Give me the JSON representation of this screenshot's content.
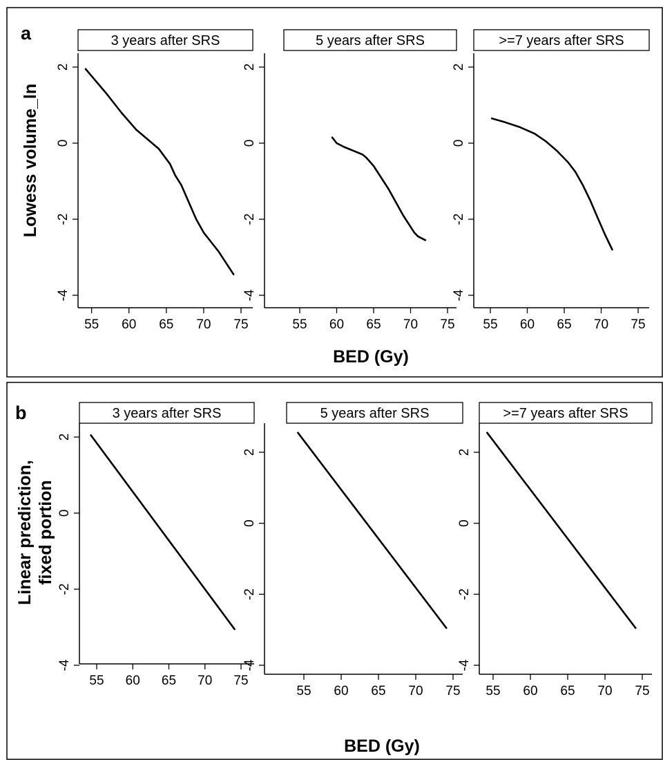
{
  "figure": {
    "panels": [
      {
        "letter": "a",
        "ylabel_lines": [
          "Lowess volume_ln"
        ],
        "xlabel": "BED (Gy)"
      },
      {
        "letter": "b",
        "ylabel_lines": [
          "Linear prediction,",
          "fixed portion"
        ],
        "xlabel": "BED (Gy)"
      }
    ]
  },
  "chart_data": [
    {
      "type": "line",
      "panel": "a",
      "title": "3 years after SRS",
      "xlim": [
        53,
        76
      ],
      "ylim": [
        -4.2,
        2.3
      ],
      "xticks": [
        55,
        60,
        65,
        70,
        75
      ],
      "yticks": [
        2,
        0,
        -2,
        -4
      ],
      "x": [
        54.2,
        57,
        59,
        61,
        62.5,
        64,
        65.5,
        66.2,
        67,
        68,
        69,
        70,
        71,
        72,
        73,
        74
      ],
      "y": [
        1.95,
        1.3,
        0.8,
        0.35,
        0.1,
        -0.15,
        -0.55,
        -0.85,
        -1.1,
        -1.55,
        -2.0,
        -2.35,
        -2.6,
        -2.85,
        -3.15,
        -3.45
      ]
    },
    {
      "type": "line",
      "panel": "a",
      "title": "5 years after SRS",
      "xlim": [
        53,
        76
      ],
      "ylim": [
        -4.2,
        2.3
      ],
      "xticks": [
        55,
        60,
        65,
        70,
        75
      ],
      "yticks": [
        2,
        0,
        -2,
        -4
      ],
      "x": [
        59.4,
        60,
        61,
        62.5,
        63.5,
        64,
        65,
        66,
        67,
        68,
        69,
        70,
        70.5,
        71,
        72
      ],
      "y": [
        0.15,
        0.0,
        -0.1,
        -0.22,
        -0.3,
        -0.38,
        -0.6,
        -0.9,
        -1.2,
        -1.55,
        -1.9,
        -2.2,
        -2.35,
        -2.45,
        -2.55
      ]
    },
    {
      "type": "line",
      "panel": "a",
      "title": ">=7 years after SRS",
      "xlim": [
        53,
        76
      ],
      "ylim": [
        -4.2,
        2.3
      ],
      "xticks": [
        55,
        60,
        65,
        70,
        75
      ],
      "yticks": [
        2,
        0,
        -2,
        -4
      ],
      "x": [
        55.2,
        57,
        59,
        61,
        62.5,
        64,
        65.5,
        66.5,
        67.5,
        68.5,
        69.5,
        70.5,
        71.5
      ],
      "y": [
        0.65,
        0.55,
        0.42,
        0.25,
        0.05,
        -0.2,
        -0.5,
        -0.75,
        -1.1,
        -1.5,
        -1.95,
        -2.4,
        -2.8
      ]
    },
    {
      "type": "line",
      "panel": "b",
      "title": "3 years after SRS",
      "xlim": [
        53,
        76
      ],
      "ylim": [
        -4.2,
        2.5
      ],
      "xticks": [
        55,
        60,
        65,
        70,
        75
      ],
      "yticks": [
        2,
        0,
        -2,
        -4
      ],
      "x": [
        54.2,
        74.1
      ],
      "y": [
        2.05,
        -3.05
      ]
    },
    {
      "type": "line",
      "panel": "b",
      "title": "5 years after SRS",
      "xlim": [
        53,
        76
      ],
      "ylim": [
        -4.2,
        2.8
      ],
      "xticks": [
        55,
        60,
        65,
        70,
        75
      ],
      "yticks": [
        2,
        0,
        -2,
        -4
      ],
      "x": [
        54.2,
        74.1
      ],
      "y": [
        2.55,
        -2.95
      ]
    },
    {
      "type": "line",
      "panel": "b",
      "title": ">=7 years after SRS",
      "xlim": [
        53,
        76
      ],
      "ylim": [
        -4.2,
        2.8
      ],
      "xticks": [
        55,
        60,
        65,
        70,
        75
      ],
      "yticks": [
        2,
        0,
        -2,
        -4
      ],
      "x": [
        54.2,
        74.1
      ],
      "y": [
        2.55,
        -2.95
      ]
    }
  ]
}
